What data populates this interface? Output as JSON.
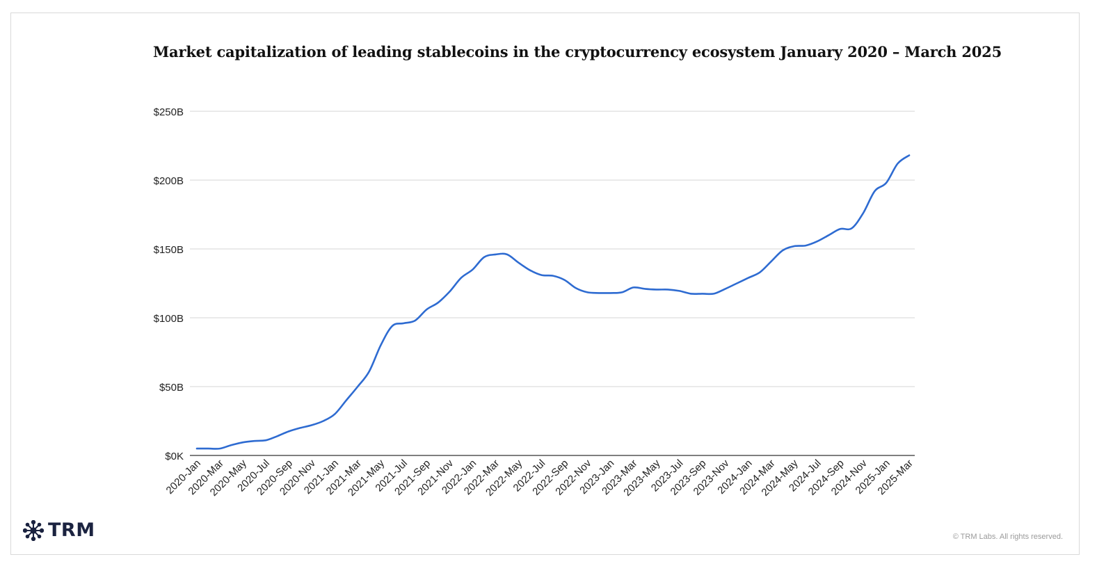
{
  "brand": {
    "name": "TRM",
    "logo_icon": "network-star-icon",
    "logo_color": "#1b2340"
  },
  "footer": {
    "copyright": "© TRM Labs. All rights reserved."
  },
  "chart_data": {
    "type": "line",
    "title": "Market capitalization of leading stablecoins in the cryptocurrency ecosystem January 2020 – March 2025",
    "xlabel": "",
    "ylabel": "",
    "yticks": [
      "$0K",
      "$50B",
      "$100B",
      "$150B",
      "$200B",
      "$250B"
    ],
    "ylim": [
      0,
      250
    ],
    "yunit": "billion USD",
    "grid": true,
    "legend": "none",
    "line_color": "#2e6bd1",
    "x_tick_labels": [
      "2020-Jan",
      "2020-Mar",
      "2020-May",
      "2020-Jul",
      "2020-Sep",
      "2020-Nov",
      "2021-Jan",
      "2021-Mar",
      "2021-May",
      "2021-Jul",
      "2021-Sep",
      "2021-Nov",
      "2022-Jan",
      "2022-Mar",
      "2022-May",
      "2022-Jul",
      "2022-Sep",
      "2022-Nov",
      "2023-Jan",
      "2023-Mar",
      "2023-May",
      "2023-Jul",
      "2023-Sep",
      "2023-Nov",
      "2024-Jan",
      "2024-Mar",
      "2024-May",
      "2024-Jul",
      "2024-Sep",
      "2024-Nov",
      "2025-Jan",
      "2025-Mar"
    ],
    "x": [
      "2020-Jan",
      "2020-Feb",
      "2020-Mar",
      "2020-Apr",
      "2020-May",
      "2020-Jun",
      "2020-Jul",
      "2020-Aug",
      "2020-Sep",
      "2020-Oct",
      "2020-Nov",
      "2020-Dec",
      "2021-Jan",
      "2021-Feb",
      "2021-Mar",
      "2021-Apr",
      "2021-May",
      "2021-Jun",
      "2021-Jul",
      "2021-Aug",
      "2021-Sep",
      "2021-Oct",
      "2021-Nov",
      "2021-Dec",
      "2022-Jan",
      "2022-Feb",
      "2022-Mar",
      "2022-Apr",
      "2022-May",
      "2022-Jun",
      "2022-Jul",
      "2022-Aug",
      "2022-Sep",
      "2022-Oct",
      "2022-Nov",
      "2022-Dec",
      "2023-Jan",
      "2023-Feb",
      "2023-Mar",
      "2023-Apr",
      "2023-May",
      "2023-Jun",
      "2023-Jul",
      "2023-Aug",
      "2023-Sep",
      "2023-Oct",
      "2023-Nov",
      "2023-Dec",
      "2024-Jan",
      "2024-Feb",
      "2024-Mar",
      "2024-Apr",
      "2024-May",
      "2024-Jun",
      "2024-Jul",
      "2024-Aug",
      "2024-Sep",
      "2024-Oct",
      "2024-Nov",
      "2024-Dec",
      "2025-Jan",
      "2025-Feb",
      "2025-Mar"
    ],
    "series": [
      {
        "values": [
          5,
          5,
          5,
          7.5,
          9.5,
          10.5,
          11,
          14,
          17.5,
          20,
          22,
          25,
          30,
          40,
          50,
          61,
          80,
          94,
          96,
          98,
          106,
          111,
          119,
          129,
          135,
          144,
          146,
          146,
          140,
          134.5,
          131,
          130.5,
          127.5,
          121.5,
          118.5,
          118,
          118,
          118.5,
          122,
          121,
          120.5,
          120.5,
          119.5,
          117.5,
          117.5,
          117.5,
          121,
          125,
          129,
          133,
          141,
          149,
          152,
          152.5,
          155.5,
          160,
          164.5,
          165,
          176,
          192,
          198,
          212,
          218
        ]
      }
    ]
  }
}
